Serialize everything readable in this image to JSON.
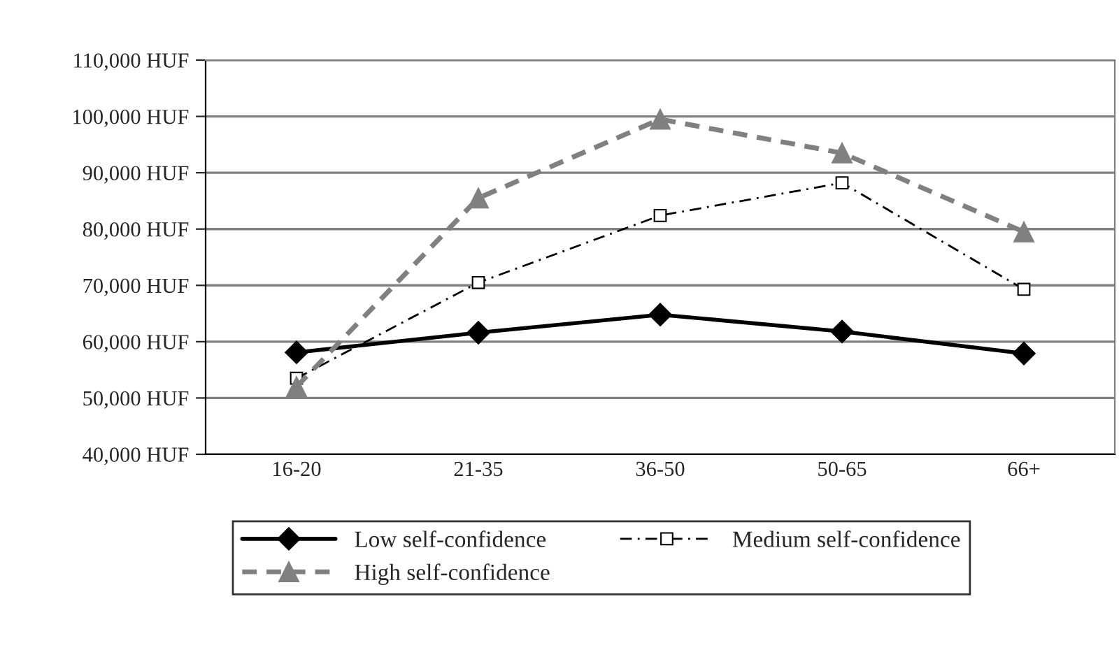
{
  "chart_data": {
    "type": "line",
    "categories": [
      "16-20",
      "21-35",
      "36-50",
      "50-65",
      "66+"
    ],
    "series": [
      {
        "name": "Low self-confidence",
        "color": "#000000",
        "marker": "diamond",
        "line_style": "solid",
        "values": [
          58100,
          61600,
          64800,
          61800,
          57900
        ]
      },
      {
        "name": "Medium self-confidence",
        "color": "#000000",
        "marker": "square",
        "line_style": "dashdot",
        "values": [
          53500,
          70500,
          82400,
          88200,
          69300
        ]
      },
      {
        "name": "High self-confidence",
        "color": "#808080",
        "marker": "triangle",
        "line_style": "dashed",
        "values": [
          52000,
          85500,
          99500,
          93500,
          79500
        ]
      }
    ],
    "ylim": [
      40000,
      110000
    ],
    "yticks": [
      {
        "value": 40000,
        "label": "40,000 HUF"
      },
      {
        "value": 50000,
        "label": "50,000 HUF"
      },
      {
        "value": 60000,
        "label": "60,000 HUF"
      },
      {
        "value": 70000,
        "label": "70,000 HUF"
      },
      {
        "value": 80000,
        "label": "80,000 HUF"
      },
      {
        "value": 90000,
        "label": "90,000 HUF"
      },
      {
        "value": 100000,
        "label": "100,000 HUF"
      },
      {
        "value": 110000,
        "label": "110,000 HUF"
      }
    ],
    "grid": "y",
    "legend": "bottom"
  }
}
